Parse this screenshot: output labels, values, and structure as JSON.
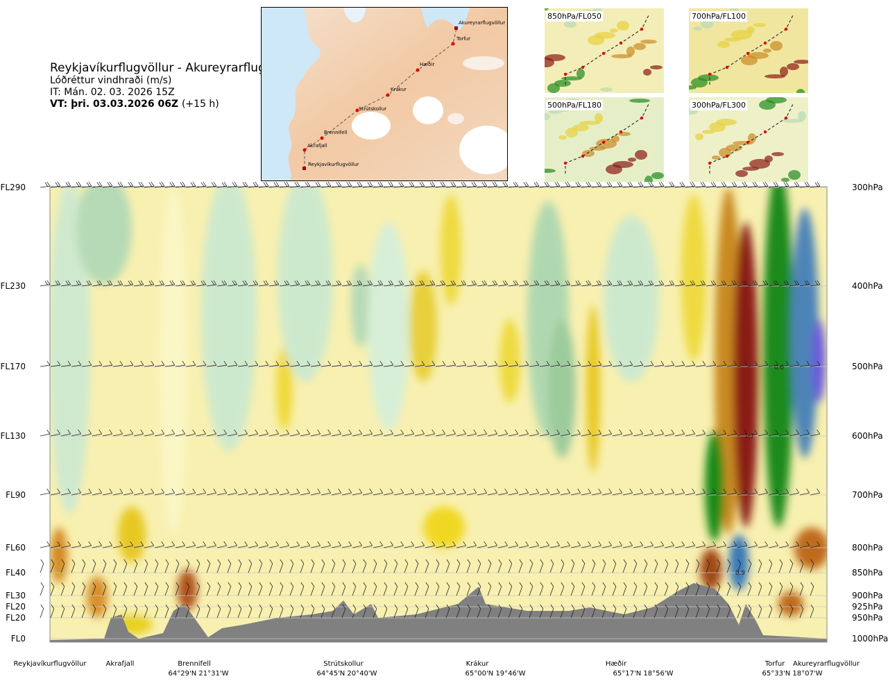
{
  "header": {
    "route_title": "Reykjavíkurflugvöllur - Akureyrarflugvöllur",
    "variable": "Lóðréttur vindhraði (m/s)",
    "issue_time": "IT: Mán. 02. 03. 2026 15Z",
    "valid_time": "VT: þri. 03.03.2026 06Z",
    "lead_time": "(+15 h)"
  },
  "map": {
    "stations": [
      "Akureyrarflugvöllur",
      "Torfur",
      "Hæðir",
      "Krákur",
      "Strútskollur",
      "Brennifell",
      "Akrafjall",
      "Reykjavíkurflugvöllur"
    ]
  },
  "insets": [
    "850hPa/FL050",
    "700hPa/FL100",
    "500hPa/FL180",
    "300hPa/FL300"
  ],
  "chart_data": {
    "type": "heatmap",
    "title": "Lóðréttur vindhraði (m/s)",
    "y_left_labels": [
      "FL290",
      "FL230",
      "FL170",
      "FL130",
      "FL90",
      "FL60",
      "FL40",
      "FL30",
      "FL20",
      "FL20",
      "FL0"
    ],
    "y_right_labels": [
      "300hPa",
      "400hPa",
      "500hPa",
      "600hPa",
      "700hPa",
      "800hPa",
      "850hPa",
      "900hPa",
      "925hPa",
      "950hPa",
      "1000hPa"
    ],
    "y_right_values": [
      300,
      400,
      500,
      600,
      700,
      800,
      850,
      900,
      925,
      950,
      1000
    ],
    "ylim": [
      1000,
      300
    ],
    "x_stations": [
      "Reykjavíkurflugvöllur",
      "Akrafjall",
      "Brennifell",
      "Strútskollur",
      "Krákur",
      "Hæðir",
      "Torfur",
      "Akureyrarflugvöllur"
    ],
    "x_coords": [
      "64°29'N 21°31'W",
      "64°45'N 20°40'W",
      "65°00'N 19°46'W",
      "65°17'N 18°56'W",
      "65°33'N 18°07'W"
    ],
    "contour_labels": [
      "0.0",
      "1.7",
      "0.9"
    ]
  }
}
